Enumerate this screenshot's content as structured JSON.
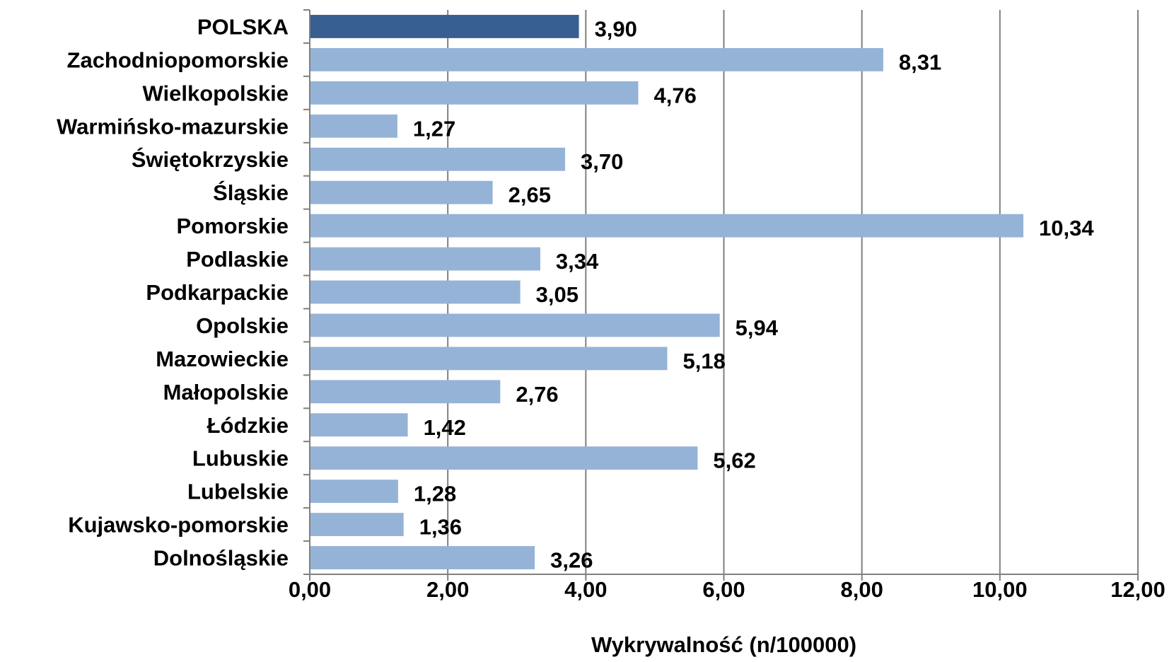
{
  "chart_data": {
    "type": "bar",
    "orientation": "horizontal",
    "title": "",
    "xlabel": "Wykrywalność  (n/100000)",
    "ylabel": "",
    "xlim": [
      0,
      12
    ],
    "x_ticks": [
      0,
      2,
      4,
      6,
      8,
      10,
      12
    ],
    "x_tick_labels": [
      "0,00",
      "2,00",
      "4,00",
      "6,00",
      "8,00",
      "10,00",
      "12,00"
    ],
    "grid": "vertical major gridlines",
    "legend": "none",
    "categories": [
      "POLSKA",
      "Zachodniopomorskie",
      "Wielkopolskie",
      "Warmińsko-mazurskie",
      "Świętokrzyskie",
      "Śląskie",
      "Pomorskie",
      "Podlaskie",
      "Podkarpackie",
      "Opolskie",
      "Mazowieckie",
      "Małopolskie",
      "Łódzkie",
      "Lubuskie",
      "Lubelskie",
      "Kujawsko-pomorskie",
      "Dolnośląskie"
    ],
    "values": [
      3.9,
      8.31,
      4.76,
      1.27,
      3.7,
      2.65,
      10.34,
      3.34,
      3.05,
      5.94,
      5.18,
      2.76,
      1.42,
      5.62,
      1.28,
      1.36,
      3.26
    ],
    "value_labels": [
      "3,90",
      "8,31",
      "4,76",
      "1,27",
      "3,70",
      "2,65",
      "10,34",
      "3,34",
      "3,05",
      "5,94",
      "5,18",
      "2,76",
      "1,42",
      "5,62",
      "1,28",
      "1,36",
      "3,26"
    ],
    "bar_colors": {
      "highlight": "#375F91",
      "default": "#95B3D7"
    },
    "highlight_category": "POLSKA"
  }
}
